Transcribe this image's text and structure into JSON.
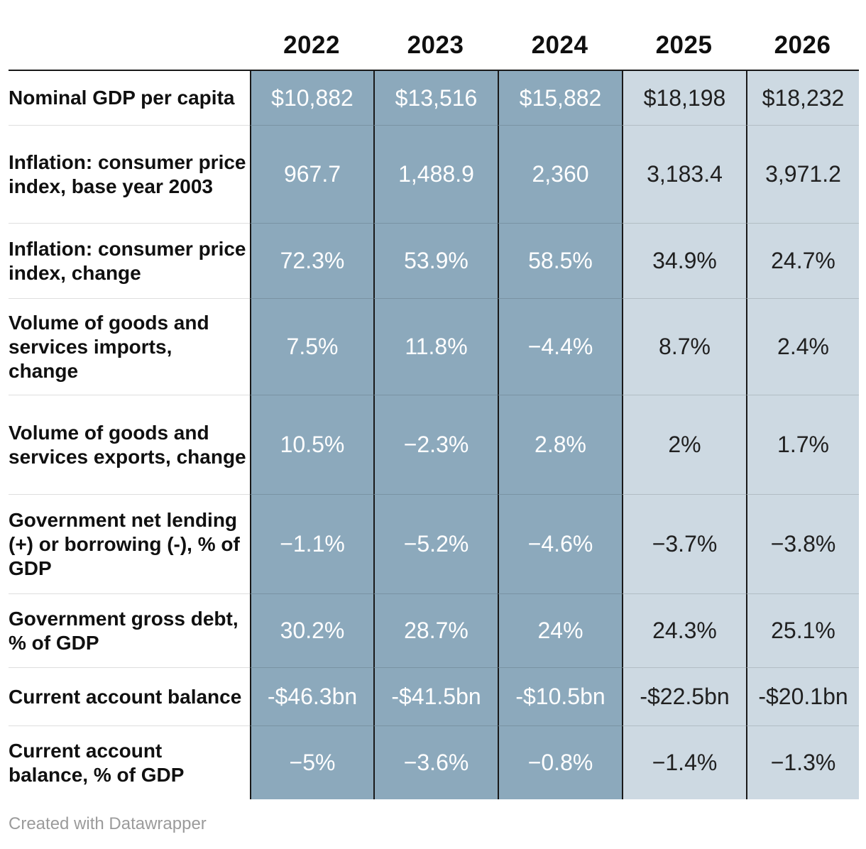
{
  "chart_data": {
    "type": "table",
    "columns": [
      "2022",
      "2023",
      "2024",
      "2025",
      "2026"
    ],
    "rows": [
      {
        "label": "Nominal GDP per capita",
        "values": [
          "$10,882",
          "$13,516",
          "$15,882",
          "$18,198",
          "$18,232"
        ]
      },
      {
        "label": "Inflation: consumer price index, base year 2003",
        "values": [
          "967.7",
          "1,488.9",
          "2,360",
          "3,183.4",
          "3,971.2"
        ]
      },
      {
        "label": "Inflation: consumer price index, change",
        "values": [
          "72.3%",
          "53.9%",
          "58.5%",
          "34.9%",
          "24.7%"
        ]
      },
      {
        "label": "Volume of goods and services imports, change",
        "values": [
          "7.5%",
          "11.8%",
          "−4.4%",
          "8.7%",
          "2.4%"
        ]
      },
      {
        "label": "Volume of goods and services exports, change",
        "values": [
          "10.5%",
          "−2.3%",
          "2.8%",
          "2%",
          "1.7%"
        ]
      },
      {
        "label": "Government net lending (+) or borrowing (-), % of GDP",
        "values": [
          "−1.1%",
          "−5.2%",
          "−4.6%",
          "−3.7%",
          "−3.8%"
        ]
      },
      {
        "label": "Government gross debt, % of GDP",
        "values": [
          "30.2%",
          "28.7%",
          "24%",
          "24.3%",
          "25.1%"
        ]
      },
      {
        "label": "Current account balance",
        "values": [
          "-$46.3bn",
          "-$41.5bn",
          "-$10.5bn",
          "-$22.5bn",
          "-$20.1bn"
        ]
      },
      {
        "label": "Current account balance, % of GDP",
        "values": [
          "−5%",
          "−3.6%",
          "−0.8%",
          "−1.4%",
          "−1.3%"
        ]
      }
    ],
    "column_groups": {
      "dark": [
        "2022",
        "2023",
        "2024"
      ],
      "light": [
        "2025",
        "2026"
      ]
    },
    "layout": {
      "grid": "off",
      "legend": "none",
      "title": ""
    }
  },
  "colors": {
    "dark_column_bg": "#8CA9BC",
    "light_column_bg": "#CDD9E2",
    "dark_column_text": "#FFFFFF",
    "light_column_text": "#202020",
    "header_rule": "#191919",
    "footer_text": "#9B9B9B"
  },
  "footer": {
    "credit": "Created with Datawrapper"
  }
}
